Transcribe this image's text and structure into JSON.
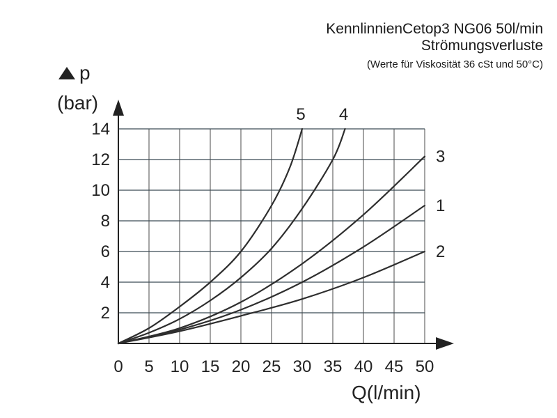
{
  "chart_data": {
    "type": "line",
    "title": "KennlinnienCetop3 NG06 50l/min",
    "subtitle": "Strömungsverluste",
    "note": "(Werte für  Viskosität 36 cSt und 50°C)",
    "ylabel_line1": "p",
    "ylabel_line2": "(bar)",
    "xlabel": "Q(l/min)",
    "xlim": [
      0,
      50
    ],
    "ylim": [
      0,
      14
    ],
    "x_ticks": [
      0,
      5,
      10,
      15,
      20,
      25,
      30,
      35,
      40,
      45,
      50
    ],
    "y_ticks": [
      2,
      4,
      6,
      8,
      10,
      12,
      14
    ],
    "grid": true,
    "series": [
      {
        "name": "5",
        "x": [
          0,
          5,
          10,
          15,
          20,
          25,
          28,
          30
        ],
        "y": [
          0,
          1.0,
          2.4,
          4.0,
          6.0,
          9.0,
          11.5,
          14.0
        ]
      },
      {
        "name": "4",
        "x": [
          0,
          5,
          10,
          15,
          20,
          25,
          30,
          35,
          37
        ],
        "y": [
          0,
          0.7,
          1.6,
          2.8,
          4.3,
          6.2,
          8.8,
          12.0,
          14.0
        ]
      },
      {
        "name": "3",
        "x": [
          0,
          10,
          20,
          30,
          40,
          50
        ],
        "y": [
          0,
          1.0,
          2.7,
          5.2,
          8.4,
          12.2
        ]
      },
      {
        "name": "1",
        "x": [
          0,
          10,
          20,
          30,
          40,
          50
        ],
        "y": [
          0,
          0.9,
          2.2,
          4.0,
          6.3,
          9.0
        ]
      },
      {
        "name": "2",
        "x": [
          0,
          10,
          20,
          30,
          40,
          50
        ],
        "y": [
          0,
          0.8,
          1.8,
          2.9,
          4.3,
          6.0
        ]
      }
    ]
  }
}
